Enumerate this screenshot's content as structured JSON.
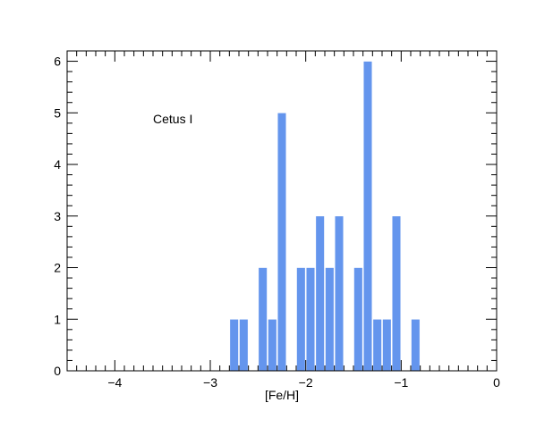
{
  "chart_data": {
    "type": "bar",
    "title": "",
    "xlabel": "[Fe/H]",
    "ylabel": "",
    "xlim": [
      -4.5,
      0
    ],
    "ylim": [
      0,
      6.2
    ],
    "bin_width": 0.1,
    "x_ticks": [
      -4,
      -3,
      -2,
      -1,
      0
    ],
    "x_tick_labels": [
      "−4",
      "−3",
      "−2",
      "−1",
      "0"
    ],
    "y_ticks": [
      0,
      1,
      2,
      3,
      4,
      5,
      6
    ],
    "y_tick_labels": [
      "0",
      "1",
      "2",
      "3",
      "4",
      "5",
      "6"
    ],
    "bar_color": "#6495ED",
    "grid": false,
    "annotations": [
      {
        "text": "Cetus I",
        "x": -3.6,
        "y": 4.8
      }
    ],
    "bins": [
      {
        "x0": -2.8,
        "count": 1
      },
      {
        "x0": -2.7,
        "count": 1
      },
      {
        "x0": -2.5,
        "count": 2
      },
      {
        "x0": -2.4,
        "count": 1
      },
      {
        "x0": -2.3,
        "count": 5
      },
      {
        "x0": -2.1,
        "count": 2
      },
      {
        "x0": -2.0,
        "count": 2
      },
      {
        "x0": -1.9,
        "count": 3
      },
      {
        "x0": -1.8,
        "count": 2
      },
      {
        "x0": -1.7,
        "count": 3
      },
      {
        "x0": -1.5,
        "count": 2
      },
      {
        "x0": -1.4,
        "count": 6
      },
      {
        "x0": -1.3,
        "count": 1
      },
      {
        "x0": -1.2,
        "count": 1
      },
      {
        "x0": -1.1,
        "count": 3
      },
      {
        "x0": -0.9,
        "count": 1
      }
    ]
  }
}
